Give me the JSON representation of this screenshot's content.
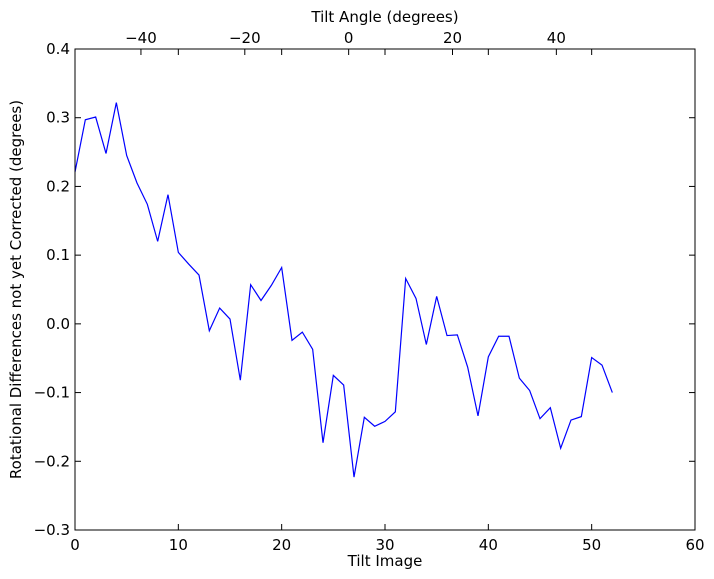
{
  "chart_data": {
    "type": "line",
    "xlabel": "Tilt Image",
    "ylabel": "Rotational Differences not yet Corrected (degrees)",
    "top_xlabel": "Tilt Angle (degrees)",
    "xlim": [
      0,
      60
    ],
    "ylim": [
      -0.3,
      0.4
    ],
    "top_xlim": [
      -52.7,
      66.7
    ],
    "x_ticks": [
      0,
      10,
      20,
      30,
      40,
      50,
      60
    ],
    "x_tick_labels": [
      "0",
      "10",
      "20",
      "30",
      "40",
      "50",
      "60"
    ],
    "y_ticks": [
      -0.3,
      -0.2,
      -0.1,
      0.0,
      0.1,
      0.2,
      0.3,
      0.4
    ],
    "y_tick_labels": [
      "−0.3",
      "−0.2",
      "−0.1",
      "0.0",
      "0.1",
      "0.2",
      "0.3",
      "0.4"
    ],
    "top_ticks": [
      -40,
      -20,
      0,
      20,
      40
    ],
    "top_tick_labels": [
      "−40",
      "−20",
      "0",
      "20",
      "40"
    ],
    "grid": false,
    "series": [
      {
        "color": "#0000ff",
        "x": [
          0,
          1,
          2,
          3,
          4,
          5,
          6,
          7,
          8,
          9,
          10,
          11,
          12,
          13,
          14,
          15,
          16,
          17,
          18,
          19,
          20,
          21,
          22,
          23,
          24,
          25,
          26,
          27,
          28,
          29,
          30,
          31,
          32,
          33,
          34,
          35,
          36,
          37,
          38,
          39,
          40,
          41,
          42,
          43,
          44,
          45,
          46,
          47,
          48,
          49,
          50,
          51,
          52
        ],
        "y": [
          0.221,
          0.297,
          0.301,
          0.248,
          0.322,
          0.245,
          0.205,
          0.174,
          0.12,
          0.188,
          0.104,
          0.087,
          0.071,
          -0.01,
          0.023,
          0.007,
          -0.082,
          0.057,
          0.034,
          0.056,
          0.082,
          -0.024,
          -0.012,
          -0.037,
          -0.173,
          -0.075,
          -0.089,
          -0.223,
          -0.136,
          -0.149,
          -0.142,
          -0.128,
          0.066,
          0.037,
          -0.03,
          0.04,
          -0.017,
          -0.016,
          -0.063,
          -0.134,
          -0.048,
          -0.018,
          -0.018,
          -0.079,
          -0.097,
          -0.138,
          -0.122,
          -0.181,
          -0.14,
          -0.135,
          -0.049,
          -0.06,
          -0.1
        ]
      }
    ]
  }
}
